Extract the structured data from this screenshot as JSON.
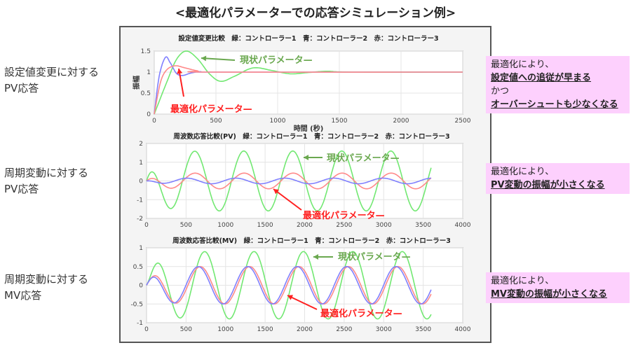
{
  "title": "<最適化パラメーターでの応答シミュレーション例>",
  "row_labels": [
    {
      "line1": "設定値変更に対する",
      "line2": "PV応答"
    },
    {
      "line1": "周期変動に対する",
      "line2": "PV応答"
    },
    {
      "line1": "周期変動に対する",
      "line2": "MV応答"
    }
  ],
  "notes": [
    {
      "l1": "最適化により、",
      "l2": "設定値への追従が早まる",
      "l3": "かつ",
      "l4": "オーバーシュートも少なくなる"
    },
    {
      "l1": "最適化により、",
      "l2": "PV変動の振幅が小さくなる"
    },
    {
      "l1": "最適化により、",
      "l2": "MV変動の振幅が小さくなる"
    }
  ],
  "annotations": {
    "current": "現状パラメータ—",
    "optimized": "最適化パラメータ—"
  },
  "colors": {
    "green": "#6fe36f",
    "blue": "#7a7aff",
    "red": "#ff8080",
    "note_bg": "#fdd0fd",
    "current_text": "#6aa84f",
    "optimized_text": "#ff2020"
  },
  "chart_data": [
    {
      "type": "line",
      "title": "設定値変更比較　緑：コントローラー1　青：コントローラー2　赤：コントローラー3",
      "xlabel": "時間 (秒)",
      "ylabel": "振幅",
      "xlim": [
        0,
        2500
      ],
      "ylim": [
        0,
        1.5
      ],
      "xticks": [
        0,
        500,
        1000,
        1500,
        2000,
        2500
      ],
      "yticks": [
        0,
        0.5,
        1,
        1.5
      ],
      "grid": true,
      "series": [
        {
          "color": "green",
          "points": [
            [
              0,
              0
            ],
            [
              100,
              0.75
            ],
            [
              180,
              1.3
            ],
            [
              260,
              1.5
            ],
            [
              350,
              1.32
            ],
            [
              450,
              0.95
            ],
            [
              540,
              0.78
            ],
            [
              650,
              0.9
            ],
            [
              800,
              1.1
            ],
            [
              950,
              1.04
            ],
            [
              1100,
              0.96
            ],
            [
              1250,
              0.99
            ],
            [
              1400,
              1.02
            ],
            [
              1600,
              1.0
            ],
            [
              2500,
              1.0
            ]
          ]
        },
        {
          "color": "blue",
          "points": [
            [
              0,
              0
            ],
            [
              40,
              0.9
            ],
            [
              90,
              1.35
            ],
            [
              130,
              1.22
            ],
            [
              180,
              0.97
            ],
            [
              230,
              0.92
            ],
            [
              300,
              0.98
            ],
            [
              380,
              1.01
            ],
            [
              500,
              1.0
            ],
            [
              2500,
              1.0
            ]
          ]
        },
        {
          "color": "red",
          "points": [
            [
              0,
              0
            ],
            [
              50,
              0.75
            ],
            [
              100,
              1.05
            ],
            [
              170,
              1.15
            ],
            [
              250,
              1.1
            ],
            [
              350,
              1.03
            ],
            [
              450,
              1.0
            ],
            [
              2500,
              1.0
            ]
          ]
        }
      ]
    },
    {
      "type": "line",
      "title": "周波数応答比較(PV)　緑：コントローラー1　青：コントローラー2　赤：コントローラー3",
      "xlim": [
        0,
        4000
      ],
      "ylim": [
        -2,
        2
      ],
      "xticks": [
        0,
        500,
        1000,
        1500,
        2000,
        2500,
        3000,
        3500,
        4000
      ],
      "yticks": [
        -2,
        -1,
        0,
        1,
        2
      ],
      "grid": true,
      "t_end": 3600,
      "series": [
        {
          "color": "green",
          "amplitude": 1.6,
          "period": 620,
          "peak_time": 610
        },
        {
          "color": "red",
          "amplitude": 0.42,
          "period": 620,
          "peak_time": 615
        },
        {
          "color": "blue",
          "amplitude": 0.15,
          "period": 620,
          "peak_time": 510
        }
      ]
    },
    {
      "type": "line",
      "title": "周波数応答比較(MV)　緑：コントローラー1　青：コントローラー2　赤：コントローラー3",
      "xlim": [
        0,
        4000
      ],
      "ylim": [
        -1,
        1
      ],
      "xticks": [
        0,
        500,
        1000,
        1500,
        2000,
        2500,
        3000,
        3500,
        4000
      ],
      "yticks": [
        -1,
        -0.5,
        0,
        0.5,
        1
      ],
      "grid": true,
      "t_end": 3600,
      "series": [
        {
          "color": "green",
          "amplitude": 0.9,
          "period": 625,
          "peak_time": 735
        },
        {
          "color": "red",
          "amplitude": 0.5,
          "period": 625,
          "peak_time": 680
        },
        {
          "color": "blue",
          "amplitude": 0.5,
          "period": 625,
          "peak_time": 655
        }
      ]
    }
  ]
}
